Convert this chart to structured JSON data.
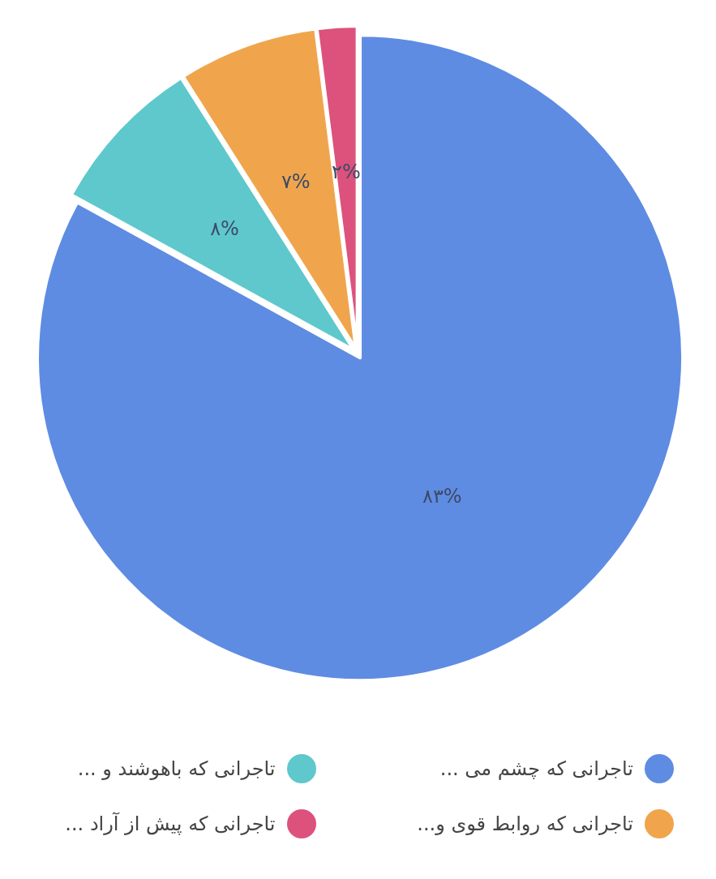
{
  "chart_data": {
    "type": "pie",
    "categories": [
      "تاجرانی که چشم می ...",
      "تاجرانی که باهوشند و ...",
      "تاجرانی که روابط قوی و...",
      "تاجرانی که پیش از آراد ..."
    ],
    "values": [
      83,
      8,
      7,
      2
    ],
    "colors": [
      "#5e8ce3",
      "#5ec8cc",
      "#f0a54c",
      "#dc527c"
    ],
    "value_labels": [
      "۸۳%",
      "۸%",
      "۷%",
      "۲%"
    ],
    "legend": "bottom"
  }
}
